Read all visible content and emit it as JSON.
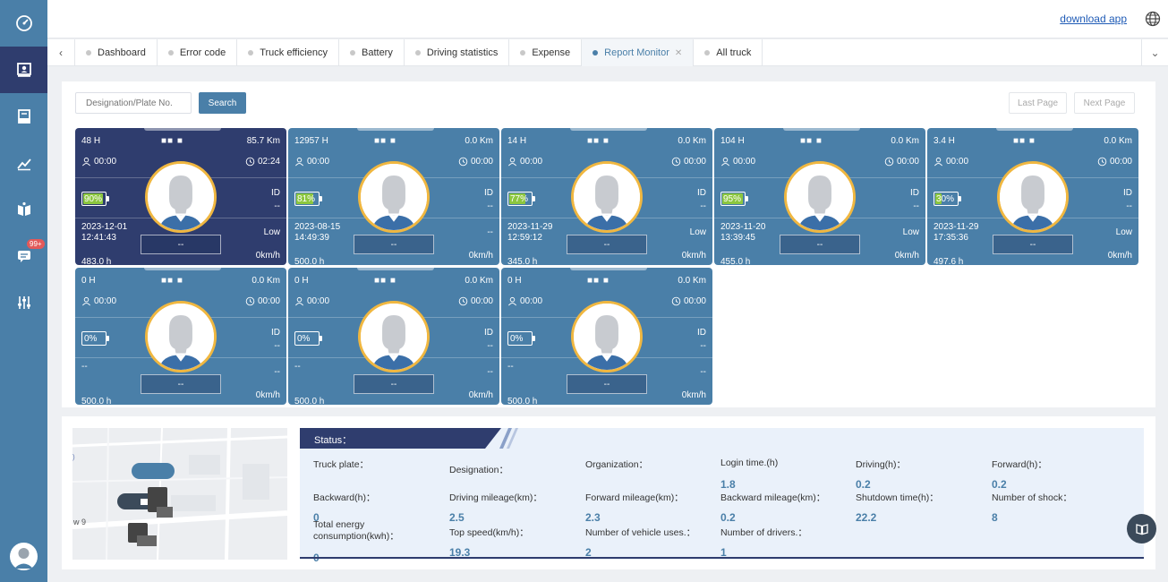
{
  "header": {
    "download_label": "download app"
  },
  "sidebar": {
    "badge": "99+"
  },
  "tabs": [
    {
      "label": "Dashboard"
    },
    {
      "label": "Error code"
    },
    {
      "label": "Truck efficiency"
    },
    {
      "label": "Battery"
    },
    {
      "label": "Driving statistics"
    },
    {
      "label": "Expense"
    },
    {
      "label": "Report Monitor",
      "active": true
    },
    {
      "label": "All truck"
    }
  ],
  "search": {
    "placeholder": "Designation/Plate No.",
    "button_label": "Search"
  },
  "pager": {
    "last_label": "Last Page",
    "next_label": "Next Page"
  },
  "cards": [
    {
      "hours": "48 H",
      "km": "85.7 Km",
      "login": "00:00",
      "drive": "02:24",
      "battery": "90%",
      "battery_level": 0.9,
      "id_label": "ID",
      "id_value": "--",
      "date": "2023-12-01",
      "time": "12:41:43",
      "level": "Low",
      "driver": "--",
      "total": "483.0 h",
      "speed": "0km/h",
      "dark": true
    },
    {
      "hours": "12957 H",
      "km": "0.0 Km",
      "login": "00:00",
      "drive": "00:00",
      "battery": "81%",
      "battery_level": 0.81,
      "id_label": "ID",
      "id_value": "--",
      "date": "2023-08-15",
      "time": "14:49:39",
      "level": "--",
      "driver": "--",
      "total": "500.0 h",
      "speed": "0km/h"
    },
    {
      "hours": "14 H",
      "km": "0.0 Km",
      "login": "00:00",
      "drive": "00:00",
      "battery": "77%",
      "battery_level": 0.77,
      "id_label": "ID",
      "id_value": "--",
      "date": "2023-11-29",
      "time": "12:59:12",
      "level": "Low",
      "driver": "--",
      "total": "345.0 h",
      "speed": "0km/h"
    },
    {
      "hours": "104 H",
      "km": "0.0 Km",
      "login": "00:00",
      "drive": "00:00",
      "battery": "95%",
      "battery_level": 0.95,
      "id_label": "ID",
      "id_value": "--",
      "date": "2023-11-20",
      "time": "13:39:45",
      "level": "Low",
      "driver": "--",
      "total": "455.0 h",
      "speed": "0km/h"
    },
    {
      "hours": "3.4 H",
      "km": "0.0 Km",
      "login": "00:00",
      "drive": "00:00",
      "battery": "30%",
      "battery_level": 0.3,
      "id_label": "ID",
      "id_value": "--",
      "date": "2023-11-29",
      "time": "17:35:36",
      "level": "Low",
      "driver": "--",
      "total": "497.6 h",
      "speed": "0km/h"
    },
    {
      "hours": "0 H",
      "km": "0.0 Km",
      "login": "00:00",
      "drive": "00:00",
      "battery": "0%",
      "battery_level": 0,
      "id_label": "ID",
      "id_value": "--",
      "date": "--",
      "time": "",
      "level": "--",
      "driver": "--",
      "total": "500.0 h",
      "speed": "0km/h"
    },
    {
      "hours": "0 H",
      "km": "0.0 Km",
      "login": "00:00",
      "drive": "00:00",
      "battery": "0%",
      "battery_level": 0,
      "id_label": "ID",
      "id_value": "--",
      "date": "--",
      "time": "",
      "level": "--",
      "driver": "--",
      "total": "500.0 h",
      "speed": "0km/h"
    },
    {
      "hours": "0 H",
      "km": "0.0 Km",
      "login": "00:00",
      "drive": "00:00",
      "battery": "0%",
      "battery_level": 0,
      "id_label": "ID",
      "id_value": "--",
      "date": "--",
      "time": "",
      "level": "--",
      "driver": "--",
      "total": "500.0 h",
      "speed": "0km/h"
    }
  ],
  "map": {
    "label": "w 9",
    "label2": ")"
  },
  "status": {
    "title": "Status：",
    "fields": [
      {
        "label": "Truck plate：",
        "value": ""
      },
      {
        "label": "Designation：",
        "value": ""
      },
      {
        "label": "Organization：",
        "value": ""
      },
      {
        "label": "Login time.(h)",
        "value": "1.8"
      },
      {
        "label": "Driving(h)：",
        "value": "0.2"
      },
      {
        "label": "Forward(h)：",
        "value": "0.2"
      },
      {
        "label": "Backward(h)：",
        "value": "0"
      },
      {
        "label": "Driving mileage(km)：",
        "value": "2.5"
      },
      {
        "label": "Forward mileage(km)：",
        "value": "2.3"
      },
      {
        "label": "Backward mileage(km)：",
        "value": "0.2"
      },
      {
        "label": "Shutdown time(h)：",
        "value": "22.2"
      },
      {
        "label": "Number of shock：",
        "value": "8"
      },
      {
        "label": "Total energy consumption(kwh)：",
        "value": "0"
      },
      {
        "label": "Top speed(km/h)：",
        "value": "19.3"
      },
      {
        "label": "Number of vehicle uses.：",
        "value": "2"
      },
      {
        "label": "Number of drivers.：",
        "value": "1"
      }
    ]
  }
}
